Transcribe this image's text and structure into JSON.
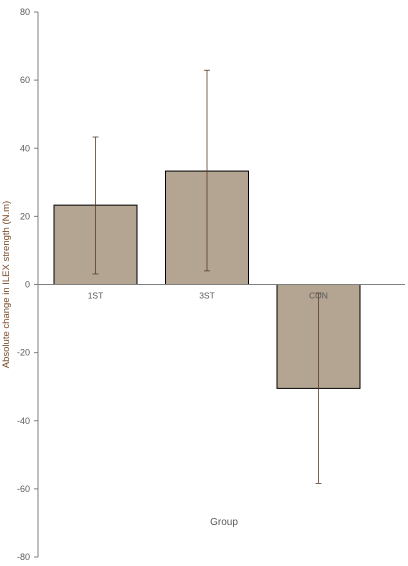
{
  "chart_data": {
    "type": "bar",
    "categories": [
      "1ST",
      "3ST",
      "CON"
    ],
    "values": [
      23.3,
      33.3,
      -30.5
    ],
    "error_low": [
      3.1,
      4.0,
      -58.4
    ],
    "error_high": [
      43.3,
      62.9,
      -2.5
    ],
    "xlabel": "Group",
    "ylabel": "Absolute change in ILEX strength (N.m)",
    "ylim": [
      -80,
      80
    ],
    "yticks": [
      "80",
      "60",
      "40",
      "20",
      "0",
      "-20",
      "-40",
      "-60",
      "-80"
    ],
    "grid": false,
    "bar_color": "#b4a593",
    "bar_edge_color": "#000000",
    "error_color": "#5a3c28",
    "axis_color": "#7f7f7f"
  }
}
